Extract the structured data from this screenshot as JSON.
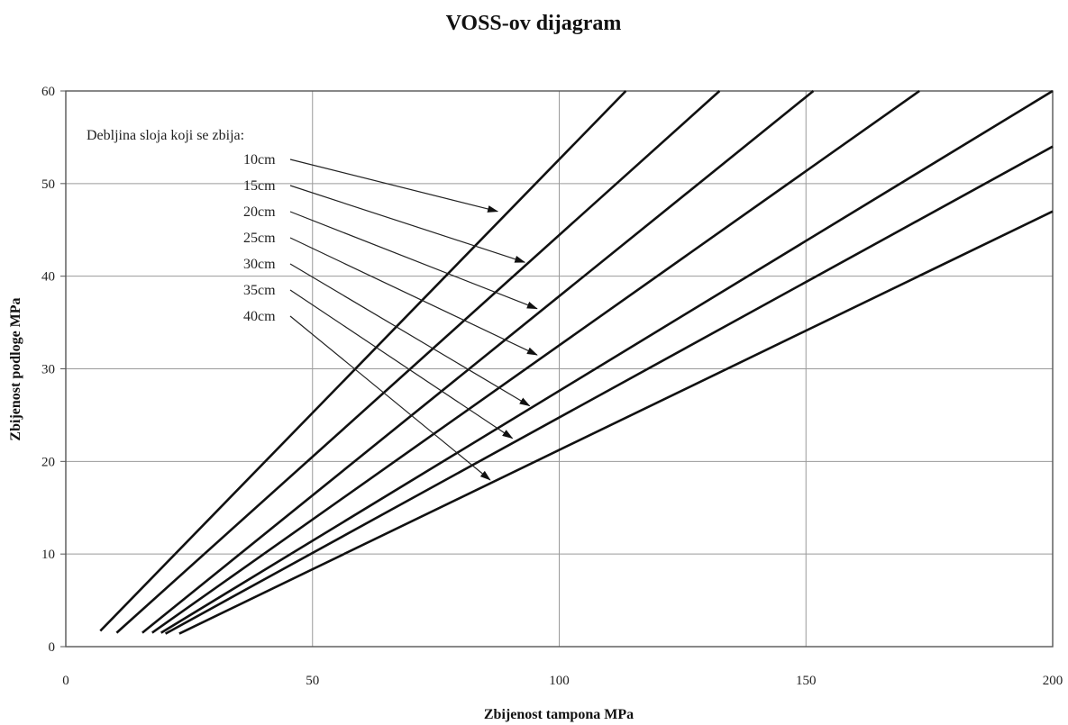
{
  "chart_data": {
    "type": "line",
    "title": "VOSS-ov dijagram",
    "xlabel": "Zbijenost tampona MPa",
    "ylabel": "Zbijenost podloge MPa",
    "xlim": [
      0,
      200
    ],
    "ylim": [
      0,
      60
    ],
    "x_ticks": [
      "0",
      "50",
      "100",
      "150",
      "200"
    ],
    "y_ticks": [
      "0",
      "10",
      "20",
      "30",
      "40",
      "50",
      "60"
    ],
    "grid": true,
    "annotation_heading": "Debljina sloja koji se zbija:",
    "series": [
      {
        "name": "10cm",
        "x": [
          7,
          113.5
        ],
        "y": [
          1.7,
          60
        ]
      },
      {
        "name": "15cm",
        "x": [
          10.3,
          132.5
        ],
        "y": [
          1.5,
          60
        ]
      },
      {
        "name": "20cm",
        "x": [
          15.5,
          151.5
        ],
        "y": [
          1.5,
          60
        ]
      },
      {
        "name": "25cm",
        "x": [
          17.5,
          173
        ],
        "y": [
          1.5,
          60
        ]
      },
      {
        "name": "30cm",
        "x": [
          19.3,
          200
        ],
        "y": [
          1.5,
          60
        ]
      },
      {
        "name": "35cm",
        "x": [
          20.2,
          200
        ],
        "y": [
          1.4,
          54
        ]
      },
      {
        "name": "40cm",
        "x": [
          23,
          200
        ],
        "y": [
          1.4,
          47
        ]
      }
    ],
    "arrow_targets": [
      {
        "x": 87.5,
        "y": 47
      },
      {
        "x": 93,
        "y": 41.5
      },
      {
        "x": 95.5,
        "y": 36.5
      },
      {
        "x": 95.5,
        "y": 31.5
      },
      {
        "x": 94,
        "y": 26
      },
      {
        "x": 90.5,
        "y": 22.5
      },
      {
        "x": 86,
        "y": 18
      }
    ]
  }
}
